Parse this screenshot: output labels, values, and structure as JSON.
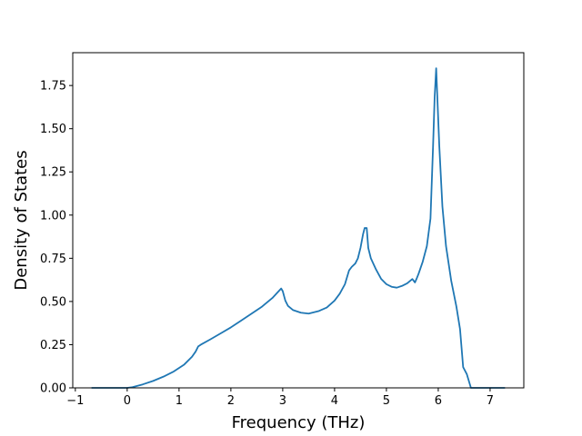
{
  "chart_data": {
    "type": "line",
    "title": "",
    "xlabel": "Frequency (THz)",
    "ylabel": "Density of States",
    "xlim": [
      -1.05,
      7.65
    ],
    "ylim": [
      0.0,
      1.94
    ],
    "grid": false,
    "x_ticks": [
      -1,
      0,
      1,
      2,
      3,
      4,
      5,
      6,
      7
    ],
    "x_tick_labels": [
      "−1",
      "0",
      "1",
      "2",
      "3",
      "4",
      "5",
      "6",
      "7"
    ],
    "y_ticks": [
      0.0,
      0.25,
      0.5,
      0.75,
      1.0,
      1.25,
      1.5,
      1.75
    ],
    "y_tick_labels": [
      "0.00",
      "0.25",
      "0.50",
      "0.75",
      "1.00",
      "1.25",
      "1.50",
      "1.75"
    ],
    "line_color": "#1f77b4",
    "series": [
      {
        "x": [
          -0.68,
          -0.3,
          0.0,
          0.1,
          0.3,
          0.5,
          0.7,
          0.9,
          1.1,
          1.25,
          1.32,
          1.37,
          1.42,
          1.6,
          1.8,
          2.0,
          2.2,
          2.4,
          2.6,
          2.8,
          2.97,
          3.0,
          3.05,
          3.1,
          3.2,
          3.35,
          3.5,
          3.7,
          3.85,
          4.0,
          4.1,
          4.2,
          4.28,
          4.33,
          4.4,
          4.45,
          4.5,
          4.55,
          4.58,
          4.62,
          4.65,
          4.7,
          4.8,
          4.9,
          5.0,
          5.1,
          5.2,
          5.3,
          5.4,
          5.5,
          5.55,
          5.58,
          5.62,
          5.7,
          5.78,
          5.85,
          5.9,
          5.93,
          5.96,
          5.98,
          6.02,
          6.08,
          6.15,
          6.25,
          6.35,
          6.42,
          6.48,
          6.55,
          6.63,
          6.8,
          7.28
        ],
        "y": [
          0.0,
          0.0,
          0.0,
          0.004,
          0.02,
          0.04,
          0.065,
          0.095,
          0.135,
          0.18,
          0.21,
          0.24,
          0.25,
          0.28,
          0.315,
          0.35,
          0.39,
          0.43,
          0.47,
          0.52,
          0.575,
          0.56,
          0.505,
          0.475,
          0.45,
          0.435,
          0.43,
          0.445,
          0.465,
          0.505,
          0.545,
          0.6,
          0.68,
          0.7,
          0.72,
          0.75,
          0.81,
          0.89,
          0.925,
          0.925,
          0.81,
          0.75,
          0.685,
          0.63,
          0.6,
          0.585,
          0.58,
          0.59,
          0.605,
          0.63,
          0.61,
          0.63,
          0.66,
          0.73,
          0.82,
          0.98,
          1.4,
          1.68,
          1.85,
          1.7,
          1.4,
          1.05,
          0.82,
          0.62,
          0.47,
          0.34,
          0.12,
          0.08,
          0.0,
          0.0,
          0.0
        ]
      }
    ]
  }
}
